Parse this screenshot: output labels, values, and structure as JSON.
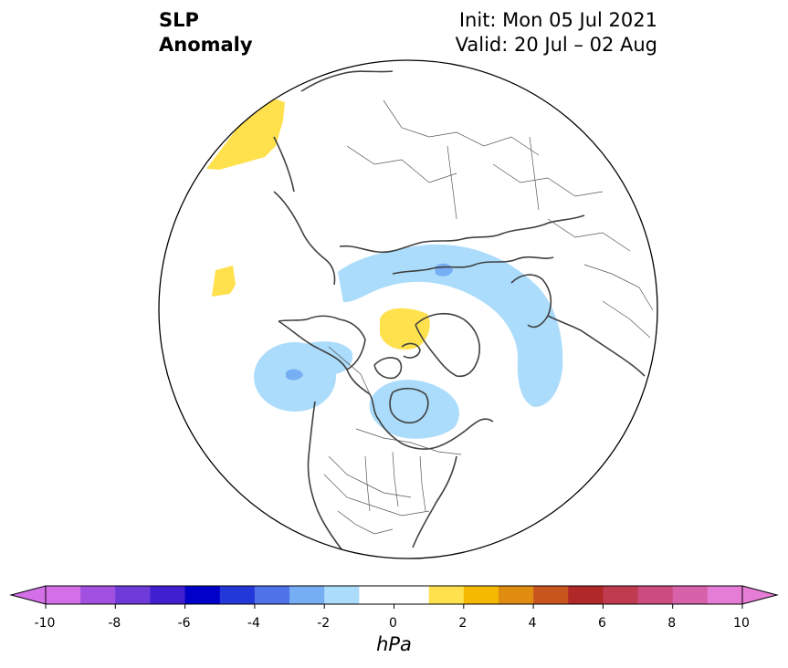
{
  "header": {
    "title_line1": "SLP",
    "title_line2": "Anomaly",
    "init_label": "Init: Mon 05 Jul 2021",
    "valid_label": "Valid: 20 Jul – 02 Aug"
  },
  "map": {
    "projection": "north-polar-stereographic",
    "anomaly_regions": [
      {
        "name": "northeast-pacific-high",
        "level": "1 to 2 hPa",
        "color": "#ffe14d"
      },
      {
        "name": "north-pacific-small-high",
        "level": "1 to 2 hPa",
        "color": "#ffe14d"
      },
      {
        "name": "arctic-ocean-high",
        "level": "1 to 2 hPa",
        "color": "#ffe14d"
      },
      {
        "name": "siberia-low-band",
        "level": "-2 to -1 hPa",
        "color": "#abdcfb"
      },
      {
        "name": "gulf-of-alaska-low",
        "level": "-2 to -1 hPa",
        "color": "#abdcfb"
      },
      {
        "name": "hudson-bay-low",
        "level": "-2 to -1 hPa",
        "color": "#abdcfb"
      },
      {
        "name": "north-atlantic-low",
        "level": "-2 to -1 hPa",
        "color": "#abdcfb"
      }
    ]
  },
  "colorbar": {
    "unit": "hPa",
    "ticks": [
      "-10",
      "-8",
      "-6",
      "-4",
      "-2",
      "0",
      "2",
      "4",
      "6",
      "8",
      "10"
    ],
    "colors": [
      "#d370e8",
      "#a250e0",
      "#6e3ad8",
      "#3f1fd0",
      "#0000c8",
      "#2338d8",
      "#4f72e8",
      "#76aef4",
      "#abdcfb",
      "#ffffff",
      "#ffffff",
      "#ffe14d",
      "#f5b800",
      "#e08c10",
      "#c8561c",
      "#b02828",
      "#c03a50",
      "#cc4c80",
      "#d762aa",
      "#e57dd6"
    ]
  }
}
